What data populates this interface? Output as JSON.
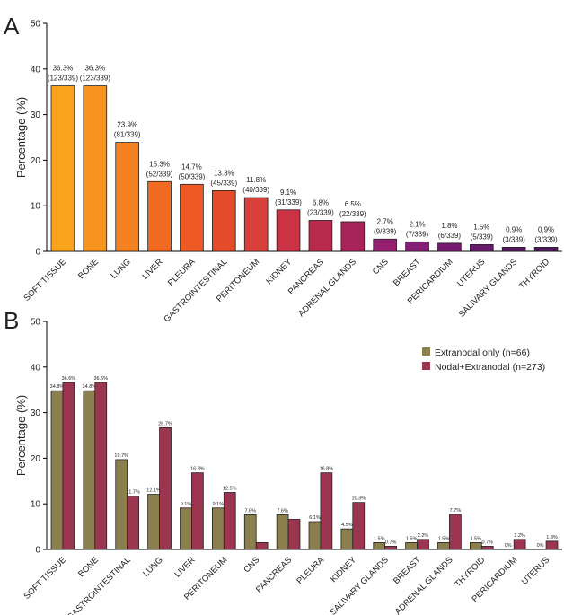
{
  "chart_data": [
    {
      "panel_label": "A",
      "type": "bar",
      "ylabel": "Percentage (%)",
      "ylim": [
        0,
        50
      ],
      "yticks": [
        0,
        10,
        20,
        30,
        40,
        50
      ],
      "categories": [
        "SOFT TISSUE",
        "BONE",
        "LUNG",
        "LIVER",
        "PLEURA",
        "GASTROINTESTINAL",
        "PERITONEUM",
        "KIDNEY",
        "PANCREAS",
        "ADRENAL GLANDS",
        "CNS",
        "BREAST",
        "PERICARDIUM",
        "UTERUS",
        "SALIVARY GLANDS",
        "THYROID"
      ],
      "values": [
        36.3,
        36.3,
        23.9,
        15.3,
        14.7,
        13.3,
        11.8,
        9.1,
        6.8,
        6.5,
        2.7,
        2.1,
        1.8,
        1.5,
        0.9,
        0.9
      ],
      "labels_pct": [
        "36.3%",
        "36.3%",
        "23.9%",
        "15.3%",
        "14.7%",
        "13.3%",
        "11.8%",
        "9.1%",
        "6.8%",
        "6.5%",
        "2.7%",
        "2.1%",
        "1.8%",
        "1.5%",
        "0.9%",
        "0.9%"
      ],
      "labels_count": [
        "(123/339)",
        "(123/339)",
        "(81/339)",
        "(52/339)",
        "(50/339)",
        "(45/339)",
        "(40/339)",
        "(31/339)",
        "(23/339)",
        "(22/339)",
        "(9/339)",
        "(7/339)",
        "(6/339)",
        "(5/339)",
        "(3/339)",
        "(3/339)"
      ],
      "colors": [
        "#f9a41a",
        "#f7941d",
        "#f58220",
        "#f26a21",
        "#ee5a24",
        "#e44b2b",
        "#d8403a",
        "#c93344",
        "#b92a4c",
        "#a8235a",
        "#952071",
        "#861e76",
        "#741a6e",
        "#661a68",
        "#581762",
        "#4d165e"
      ]
    },
    {
      "panel_label": "B",
      "type": "bar",
      "ylabel": "Percentage (%)",
      "ylim": [
        0,
        50
      ],
      "yticks": [
        0,
        10,
        20,
        30,
        40,
        50
      ],
      "categories": [
        "SOFT TISSUE",
        "BONE",
        "GASTROINTESTINAL",
        "LUNG",
        "LIVER",
        "PERITONEUM",
        "CNS",
        "PANCREAS",
        "PLEURA",
        "KIDNEY",
        "SALIVARY GLANDS",
        "BREAST",
        "ADRENAL GLANDS",
        "THYROID",
        "PERICARDIUM",
        "UTERUS"
      ],
      "series": [
        {
          "name": "Extranodal only (n=66)",
          "color": "#8c7f4e",
          "values": [
            34.8,
            34.8,
            19.7,
            12.1,
            9.1,
            9.1,
            7.6,
            7.6,
            6.1,
            4.5,
            1.5,
            1.5,
            1.5,
            1.5,
            0,
            0
          ],
          "labels": [
            "34.8%",
            "34.8%",
            "19.7%",
            "12.1%",
            "9.1%",
            "9.1%",
            "7.6%",
            "7.6%",
            "6.1%",
            "4.5%",
            "1.5%",
            "1.5%",
            "1.5%",
            "1.5%",
            "0%",
            "0%"
          ]
        },
        {
          "name": "Nodal+Extranodal (n=273)",
          "color": "#9b3550",
          "values": [
            36.6,
            36.6,
            11.7,
            26.7,
            16.8,
            12.5,
            1.5,
            6.6,
            16.8,
            10.3,
            0.7,
            2.2,
            7.7,
            0.7,
            2.2,
            1.8
          ],
          "labels": [
            "36.6%",
            "36.6%",
            "11.7%",
            "26.7%",
            "16.8%",
            "12.5%",
            "",
            "",
            "16.8%",
            "10.3%",
            "0.7%",
            "2.2%",
            "7.7%",
            "0.7%",
            "2.2%",
            "1.8%"
          ]
        }
      ],
      "legend_position": "top-right"
    }
  ]
}
